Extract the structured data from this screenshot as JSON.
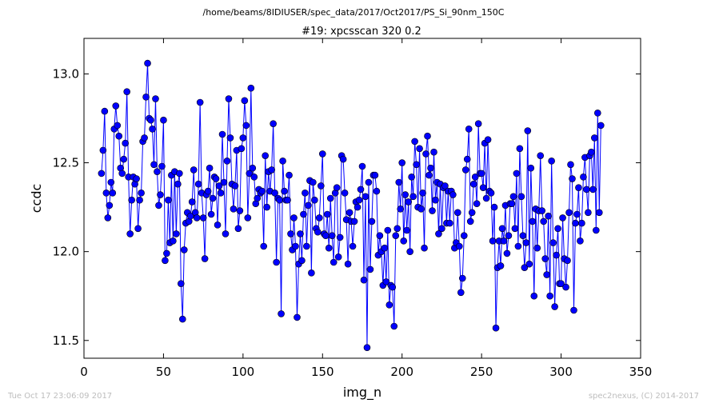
{
  "figure": {
    "path_title": "/home/beams/8IDIUSER/spec_data/2017/Oct2017/PS_Si_90nm_150C",
    "footer_left": "Tue Oct 17 23:06:09 2017",
    "footer_right": "spec2nexus, (C) 2014-2017"
  },
  "colors": {
    "series": "#0000ff",
    "axes": "#000000",
    "background": "#ffffff"
  },
  "chart_data": {
    "type": "line",
    "title": "#19: xpcsscan 320 0.2",
    "xlabel": "img_n",
    "ylabel": "ccdc",
    "xlim": [
      0,
      350
    ],
    "ylim": [
      11.4,
      13.2
    ],
    "xticks": [
      0,
      50,
      100,
      150,
      200,
      250,
      300,
      350
    ],
    "yticks": [
      11.5,
      12.0,
      12.5,
      13.0
    ],
    "xtick_labels": [
      "0",
      "50",
      "100",
      "150",
      "200",
      "250",
      "300",
      "350"
    ],
    "ytick_labels": [
      "11.5",
      "12.0",
      "12.5",
      "13.0"
    ],
    "grid": false,
    "legend": "none",
    "series": [
      {
        "marker": "circle",
        "x_start": 11,
        "x_step": 1,
        "y": [
          12.44,
          12.57,
          12.79,
          12.33,
          12.19,
          12.26,
          12.39,
          12.33,
          12.69,
          12.82,
          12.71,
          12.65,
          12.47,
          12.44,
          12.52,
          12.61,
          12.9,
          12.42,
          12.1,
          12.29,
          12.42,
          12.38,
          12.41,
          12.13,
          12.29,
          12.33,
          12.62,
          12.64,
          12.87,
          13.06,
          12.75,
          12.74,
          12.69,
          12.49,
          12.86,
          12.45,
          12.26,
          12.32,
          12.48,
          12.74,
          11.95,
          11.99,
          12.29,
          12.05,
          12.43,
          12.06,
          12.45,
          12.1,
          12.38,
          12.44,
          11.82,
          11.62,
          12.01,
          12.16,
          12.22,
          12.17,
          12.2,
          12.28,
          12.46,
          12.22,
          12.19,
          12.38,
          12.84,
          12.33,
          12.19,
          11.96,
          12.32,
          12.34,
          12.47,
          12.21,
          12.3,
          12.42,
          12.41,
          12.15,
          12.37,
          12.33,
          12.66,
          12.39,
          12.1,
          12.51,
          12.86,
          12.64,
          12.38,
          12.24,
          12.37,
          12.57,
          12.13,
          12.23,
          12.58,
          12.64,
          12.85,
          12.71,
          12.19,
          12.44,
          12.92,
          12.47,
          12.42,
          12.27,
          12.3,
          12.35,
          12.33,
          12.34,
          12.03,
          12.54,
          12.25,
          12.45,
          12.34,
          12.46,
          12.72,
          12.33,
          11.94,
          12.3,
          12.29,
          11.65,
          12.51,
          12.34,
          12.29,
          12.29,
          12.43,
          12.1,
          12.01,
          12.19,
          12.03,
          11.63,
          11.93,
          12.1,
          11.95,
          12.21,
          12.33,
          12.03,
          12.26,
          12.4,
          11.88,
          12.39,
          12.29,
          12.13,
          12.11,
          12.19,
          12.37,
          12.55,
          12.1,
          12.09,
          12.21,
          12.02,
          12.3,
          12.09,
          11.94,
          12.33,
          12.36,
          11.97,
          12.08,
          12.54,
          12.52,
          12.33,
          12.18,
          11.93,
          12.22,
          12.17,
          12.03,
          12.17,
          12.28,
          12.25,
          12.29,
          12.35,
          12.48,
          11.84,
          12.31,
          11.46,
          12.39,
          11.9,
          12.17,
          12.43,
          12.43,
          12.34,
          11.98,
          12.09,
          12.0,
          11.81,
          12.02,
          11.83,
          12.12,
          11.7,
          11.81,
          11.8,
          11.58,
          12.09,
          12.13,
          12.39,
          12.24,
          12.5,
          12.06,
          12.32,
          12.12,
          12.28,
          12.0,
          12.42,
          12.31,
          12.62,
          12.49,
          12.25,
          12.58,
          12.24,
          12.33,
          12.02,
          12.55,
          12.65,
          12.43,
          12.47,
          12.23,
          12.56,
          12.29,
          12.39,
          12.1,
          12.38,
          12.13,
          12.36,
          12.37,
          12.16,
          12.34,
          12.16,
          12.34,
          12.32,
          12.02,
          12.05,
          12.22,
          12.03,
          11.77,
          11.85,
          12.09,
          12.46,
          12.52,
          12.69,
          12.17,
          12.22,
          12.38,
          12.42,
          12.27,
          12.72,
          12.44,
          12.44,
          12.36,
          12.61,
          12.3,
          12.63,
          12.34,
          12.33,
          12.06,
          12.25,
          11.57,
          11.91,
          12.06,
          11.92,
          12.13,
          12.06,
          12.26,
          11.99,
          12.09,
          12.27,
          12.27,
          12.31,
          12.13,
          12.44,
          12.03,
          12.58,
          12.31,
          12.09,
          11.91,
          12.05,
          12.68,
          11.93,
          12.47,
          12.17,
          11.75,
          12.24,
          12.02,
          12.23,
          12.54,
          12.23,
          12.17,
          11.96,
          11.87,
          12.2,
          11.75,
          12.51,
          12.05,
          11.69,
          11.98,
          12.13,
          11.82,
          11.82,
          12.19,
          11.96,
          11.8,
          11.95,
          12.22,
          12.49,
          12.41,
          11.67,
          12.16,
          12.21,
          12.36,
          12.06,
          12.16,
          12.42,
          12.53,
          12.35,
          12.22,
          12.54,
          12.56,
          12.35,
          12.64,
          12.12,
          12.78,
          12.22,
          12.71
        ]
      }
    ]
  }
}
